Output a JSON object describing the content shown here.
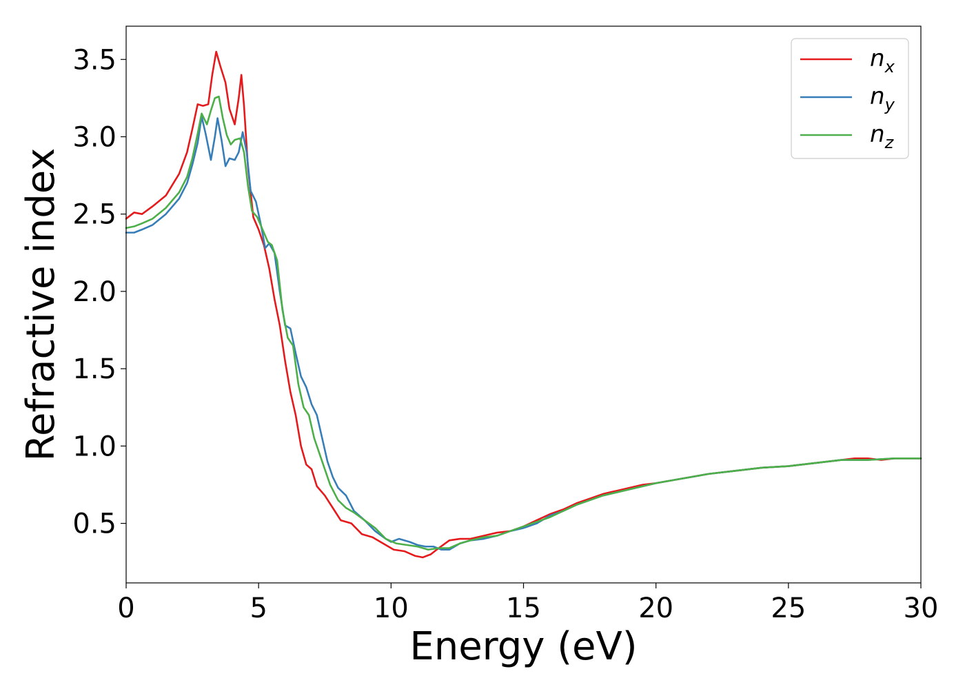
{
  "chart_data": {
    "type": "line",
    "title": "",
    "xlabel": "Energy (eV)",
    "ylabel": "Refractive index",
    "xlim": [
      0,
      30
    ],
    "ylim": [
      0.115,
      3.715
    ],
    "xticks": [
      0,
      5,
      10,
      15,
      20,
      25,
      30
    ],
    "xtick_labels": [
      "0",
      "5",
      "10",
      "15",
      "20",
      "25",
      "30"
    ],
    "yticks": [
      0.5,
      1.0,
      1.5,
      2.0,
      2.5,
      3.0,
      3.5
    ],
    "ytick_labels": [
      "0.5",
      "1.0",
      "1.5",
      "2.0",
      "2.5",
      "3.0",
      "3.5"
    ],
    "grid": false,
    "legend_position": "top-right",
    "series": [
      {
        "name": "n",
        "subscript": "x",
        "color": "#e41a1c",
        "points": [
          [
            0,
            2.47
          ],
          [
            0.3,
            2.51
          ],
          [
            0.6,
            2.5
          ],
          [
            1.0,
            2.55
          ],
          [
            1.5,
            2.62
          ],
          [
            2.0,
            2.76
          ],
          [
            2.3,
            2.9
          ],
          [
            2.5,
            3.05
          ],
          [
            2.7,
            3.21
          ],
          [
            2.9,
            3.2
          ],
          [
            3.1,
            3.21
          ],
          [
            3.25,
            3.4
          ],
          [
            3.4,
            3.55
          ],
          [
            3.55,
            3.46
          ],
          [
            3.75,
            3.35
          ],
          [
            3.9,
            3.18
          ],
          [
            4.1,
            3.08
          ],
          [
            4.25,
            3.25
          ],
          [
            4.35,
            3.4
          ],
          [
            4.45,
            3.2
          ],
          [
            4.6,
            2.8
          ],
          [
            4.8,
            2.48
          ],
          [
            5.0,
            2.4
          ],
          [
            5.2,
            2.3
          ],
          [
            5.4,
            2.15
          ],
          [
            5.6,
            1.95
          ],
          [
            5.8,
            1.78
          ],
          [
            6.0,
            1.55
          ],
          [
            6.2,
            1.35
          ],
          [
            6.4,
            1.2
          ],
          [
            6.6,
            1.0
          ],
          [
            6.8,
            0.88
          ],
          [
            7.0,
            0.85
          ],
          [
            7.2,
            0.74
          ],
          [
            7.5,
            0.68
          ],
          [
            7.8,
            0.6
          ],
          [
            8.1,
            0.52
          ],
          [
            8.5,
            0.5
          ],
          [
            8.9,
            0.43
          ],
          [
            9.3,
            0.41
          ],
          [
            9.7,
            0.37
          ],
          [
            10.1,
            0.33
          ],
          [
            10.5,
            0.32
          ],
          [
            10.9,
            0.29
          ],
          [
            11.2,
            0.28
          ],
          [
            11.5,
            0.3
          ],
          [
            11.8,
            0.34
          ],
          [
            12.2,
            0.39
          ],
          [
            12.6,
            0.4
          ],
          [
            13.0,
            0.4
          ],
          [
            13.5,
            0.42
          ],
          [
            14.0,
            0.44
          ],
          [
            14.5,
            0.45
          ],
          [
            15.0,
            0.48
          ],
          [
            15.5,
            0.52
          ],
          [
            16.0,
            0.56
          ],
          [
            16.5,
            0.59
          ],
          [
            17.0,
            0.63
          ],
          [
            17.5,
            0.66
          ],
          [
            18.0,
            0.69
          ],
          [
            18.5,
            0.71
          ],
          [
            19.0,
            0.73
          ],
          [
            19.5,
            0.75
          ],
          [
            20.0,
            0.76
          ],
          [
            21.0,
            0.79
          ],
          [
            22.0,
            0.82
          ],
          [
            23.0,
            0.84
          ],
          [
            24.0,
            0.86
          ],
          [
            25.0,
            0.87
          ],
          [
            26.0,
            0.89
          ],
          [
            27.0,
            0.91
          ],
          [
            27.5,
            0.92
          ],
          [
            28.0,
            0.92
          ],
          [
            28.5,
            0.91
          ],
          [
            29.0,
            0.92
          ],
          [
            30.0,
            0.92
          ]
        ]
      },
      {
        "name": "n",
        "subscript": "y",
        "color": "#377eb8",
        "points": [
          [
            0,
            2.38
          ],
          [
            0.3,
            2.38
          ],
          [
            0.6,
            2.4
          ],
          [
            1.0,
            2.43
          ],
          [
            1.5,
            2.5
          ],
          [
            2.0,
            2.6
          ],
          [
            2.3,
            2.7
          ],
          [
            2.5,
            2.82
          ],
          [
            2.7,
            2.96
          ],
          [
            2.85,
            3.13
          ],
          [
            3.0,
            3.02
          ],
          [
            3.2,
            2.85
          ],
          [
            3.35,
            3.0
          ],
          [
            3.45,
            3.12
          ],
          [
            3.6,
            2.98
          ],
          [
            3.75,
            2.81
          ],
          [
            3.9,
            2.86
          ],
          [
            4.1,
            2.85
          ],
          [
            4.25,
            2.9
          ],
          [
            4.4,
            3.03
          ],
          [
            4.55,
            2.9
          ],
          [
            4.7,
            2.65
          ],
          [
            4.9,
            2.58
          ],
          [
            5.1,
            2.42
          ],
          [
            5.25,
            2.28
          ],
          [
            5.4,
            2.31
          ],
          [
            5.6,
            2.25
          ],
          [
            5.8,
            2.0
          ],
          [
            6.0,
            1.78
          ],
          [
            6.2,
            1.76
          ],
          [
            6.4,
            1.6
          ],
          [
            6.6,
            1.45
          ],
          [
            6.8,
            1.38
          ],
          [
            7.0,
            1.27
          ],
          [
            7.2,
            1.2
          ],
          [
            7.4,
            1.05
          ],
          [
            7.6,
            0.9
          ],
          [
            7.8,
            0.8
          ],
          [
            8.0,
            0.73
          ],
          [
            8.3,
            0.68
          ],
          [
            8.6,
            0.58
          ],
          [
            9.0,
            0.52
          ],
          [
            9.4,
            0.45
          ],
          [
            9.8,
            0.4
          ],
          [
            10.0,
            0.38
          ],
          [
            10.3,
            0.4
          ],
          [
            10.7,
            0.38
          ],
          [
            11.0,
            0.36
          ],
          [
            11.3,
            0.35
          ],
          [
            11.6,
            0.35
          ],
          [
            11.9,
            0.33
          ],
          [
            12.2,
            0.33
          ],
          [
            12.6,
            0.37
          ],
          [
            13.0,
            0.39
          ],
          [
            13.5,
            0.4
          ],
          [
            14.0,
            0.42
          ],
          [
            14.5,
            0.45
          ],
          [
            15.0,
            0.47
          ],
          [
            15.5,
            0.5
          ],
          [
            16.0,
            0.55
          ],
          [
            16.5,
            0.58
          ],
          [
            17.0,
            0.62
          ],
          [
            17.5,
            0.65
          ],
          [
            18.0,
            0.68
          ],
          [
            18.5,
            0.7
          ],
          [
            19.0,
            0.72
          ],
          [
            19.5,
            0.74
          ],
          [
            20.0,
            0.76
          ],
          [
            21.0,
            0.79
          ],
          [
            22.0,
            0.82
          ],
          [
            23.0,
            0.84
          ],
          [
            24.0,
            0.86
          ],
          [
            25.0,
            0.87
          ],
          [
            26.0,
            0.89
          ],
          [
            27.0,
            0.91
          ],
          [
            28.0,
            0.91
          ],
          [
            29.0,
            0.92
          ],
          [
            30.0,
            0.92
          ]
        ]
      },
      {
        "name": "n",
        "subscript": "z",
        "color": "#4daf4a",
        "points": [
          [
            0,
            2.41
          ],
          [
            0.3,
            2.42
          ],
          [
            0.6,
            2.44
          ],
          [
            1.0,
            2.47
          ],
          [
            1.5,
            2.54
          ],
          [
            2.0,
            2.64
          ],
          [
            2.3,
            2.74
          ],
          [
            2.5,
            2.86
          ],
          [
            2.7,
            3.02
          ],
          [
            2.85,
            3.15
          ],
          [
            3.05,
            3.08
          ],
          [
            3.2,
            3.17
          ],
          [
            3.35,
            3.25
          ],
          [
            3.5,
            3.26
          ],
          [
            3.65,
            3.12
          ],
          [
            3.8,
            3.01
          ],
          [
            3.95,
            2.95
          ],
          [
            4.1,
            2.98
          ],
          [
            4.3,
            2.99
          ],
          [
            4.45,
            2.9
          ],
          [
            4.6,
            2.68
          ],
          [
            4.75,
            2.52
          ],
          [
            4.95,
            2.48
          ],
          [
            5.15,
            2.4
          ],
          [
            5.35,
            2.32
          ],
          [
            5.5,
            2.3
          ],
          [
            5.7,
            2.2
          ],
          [
            5.9,
            1.88
          ],
          [
            6.1,
            1.7
          ],
          [
            6.3,
            1.65
          ],
          [
            6.5,
            1.4
          ],
          [
            6.7,
            1.25
          ],
          [
            6.9,
            1.2
          ],
          [
            7.1,
            1.05
          ],
          [
            7.3,
            0.95
          ],
          [
            7.5,
            0.85
          ],
          [
            7.7,
            0.75
          ],
          [
            8.0,
            0.65
          ],
          [
            8.3,
            0.6
          ],
          [
            8.6,
            0.57
          ],
          [
            9.0,
            0.52
          ],
          [
            9.4,
            0.47
          ],
          [
            9.8,
            0.4
          ],
          [
            10.2,
            0.37
          ],
          [
            10.6,
            0.36
          ],
          [
            11.0,
            0.35
          ],
          [
            11.4,
            0.33
          ],
          [
            11.8,
            0.34
          ],
          [
            12.2,
            0.34
          ],
          [
            12.6,
            0.37
          ],
          [
            13.0,
            0.39
          ],
          [
            13.5,
            0.41
          ],
          [
            14.0,
            0.42
          ],
          [
            14.5,
            0.45
          ],
          [
            15.0,
            0.48
          ],
          [
            15.5,
            0.51
          ],
          [
            16.0,
            0.54
          ],
          [
            16.5,
            0.58
          ],
          [
            17.0,
            0.62
          ],
          [
            17.5,
            0.65
          ],
          [
            18.0,
            0.68
          ],
          [
            18.5,
            0.7
          ],
          [
            19.0,
            0.72
          ],
          [
            19.5,
            0.74
          ],
          [
            20.0,
            0.76
          ],
          [
            21.0,
            0.79
          ],
          [
            22.0,
            0.82
          ],
          [
            23.0,
            0.84
          ],
          [
            24.0,
            0.86
          ],
          [
            25.0,
            0.87
          ],
          [
            26.0,
            0.89
          ],
          [
            27.0,
            0.91
          ],
          [
            28.0,
            0.91
          ],
          [
            29.0,
            0.92
          ],
          [
            30.0,
            0.92
          ]
        ]
      }
    ]
  }
}
